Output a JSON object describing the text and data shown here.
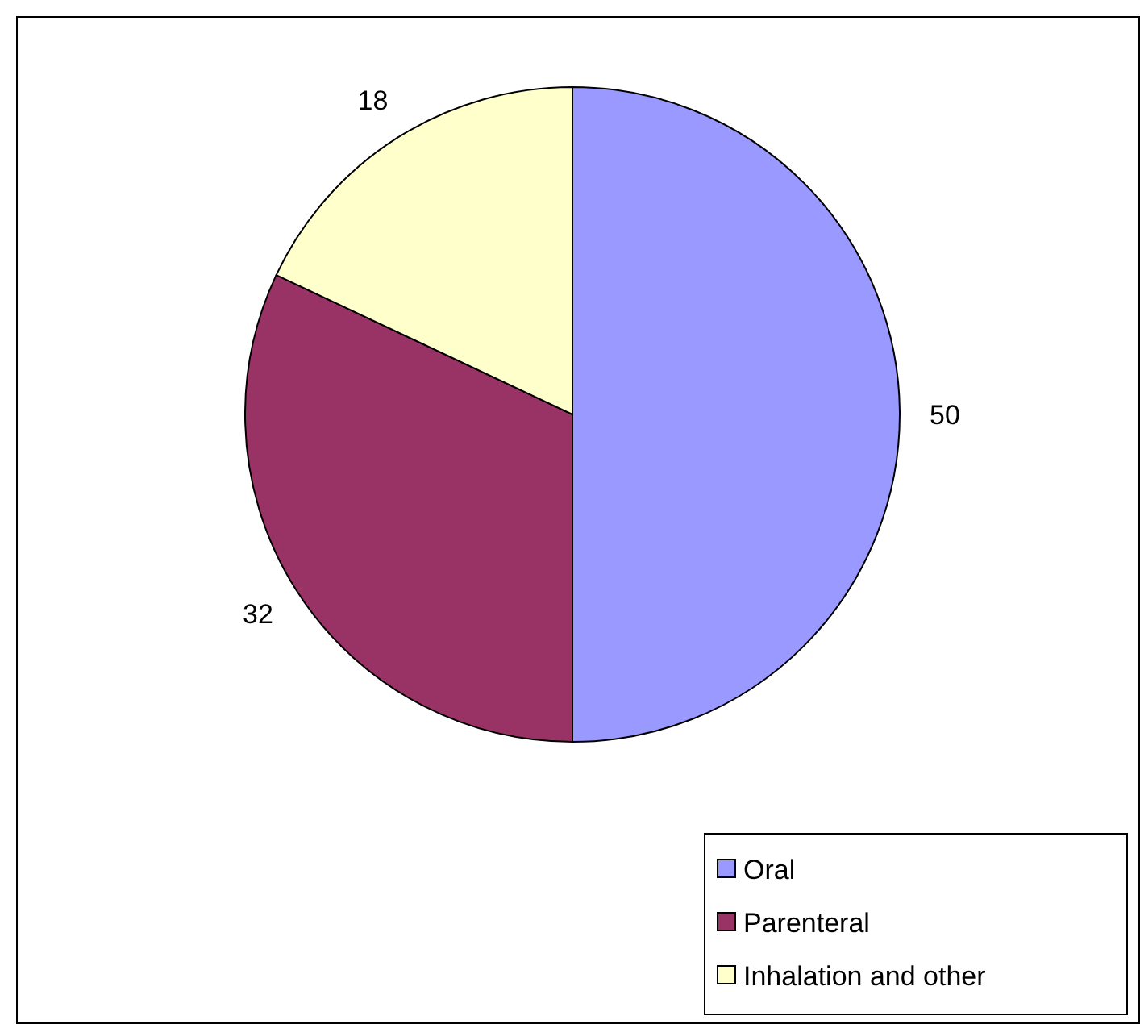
{
  "chart_data": {
    "type": "pie",
    "categories": [
      "Oral",
      "Parenteral",
      "Inhalation and other"
    ],
    "values": [
      50,
      32,
      18
    ],
    "colors": [
      "#9999ff",
      "#993366",
      "#ffffcc"
    ],
    "data_labels": true,
    "legend": "bottom right"
  }
}
